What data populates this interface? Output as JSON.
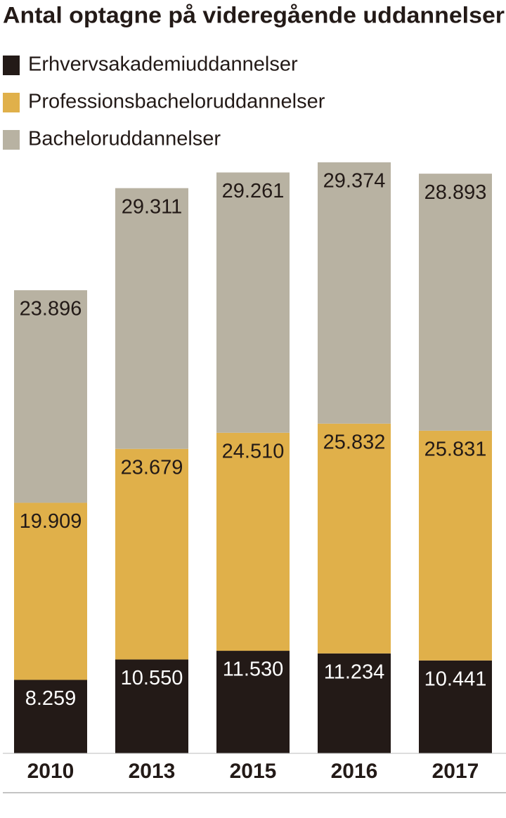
{
  "chart_data": {
    "type": "stacked_bar",
    "title": "Antal optagne på videregående uddannelser",
    "categories": [
      "2010",
      "2013",
      "2015",
      "2016",
      "2017"
    ],
    "series": [
      {
        "name": "Erhvervsakademiuddannelser",
        "color": "#231a17",
        "values": [
          8259,
          10550,
          11530,
          11234,
          10441
        ],
        "value_labels": [
          "8.259",
          "10.550",
          "11.530",
          "11.234",
          "10.441"
        ]
      },
      {
        "name": "Professionsbacheloruddannelser",
        "color": "#e0b04a",
        "values": [
          19909,
          23679,
          24510,
          25832,
          25831
        ],
        "value_labels": [
          "19.909",
          "23.679",
          "24.510",
          "25.832",
          "25.831"
        ]
      },
      {
        "name": "Bacheloruddannelser",
        "color": "#b8b2a2",
        "values": [
          23896,
          29311,
          29261,
          29374,
          28893
        ],
        "value_labels": [
          "23.896",
          "29.311",
          "29.261",
          "29.374",
          "28.893"
        ]
      }
    ]
  }
}
